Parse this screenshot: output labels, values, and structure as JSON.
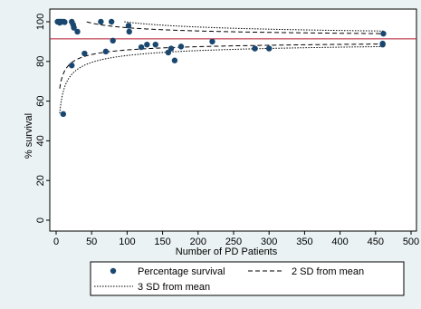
{
  "chart_data": {
    "type": "scatter",
    "xlabel": "Number of PD Patients",
    "ylabel": "% survival",
    "xlim": [
      0,
      500
    ],
    "ylim": [
      0,
      100
    ],
    "xticks": [
      0,
      50,
      100,
      150,
      200,
      250,
      300,
      350,
      400,
      450,
      500
    ],
    "yticks": [
      0,
      20,
      40,
      60,
      80,
      100
    ],
    "xtick_labels": [
      "0",
      "50",
      "100",
      "150",
      "200",
      "250",
      "300",
      "350",
      "400",
      "450",
      "500"
    ],
    "ytick_labels": [
      "0",
      "20",
      "40",
      "60",
      "80",
      "100"
    ],
    "grid": false,
    "legend_position": "bottom",
    "colors": {
      "points": "#1a476f",
      "mean_line": "#b2182b",
      "limits": "#000000",
      "frame_bg": "#eaf2f3",
      "plot_bg": "#ffffff"
    },
    "reference_line": {
      "y": 91.4
    },
    "series": [
      {
        "name": "Percentage survival",
        "kind": "points",
        "points": [
          [
            2,
            100
          ],
          [
            4,
            100
          ],
          [
            5,
            99.5
          ],
          [
            6,
            100
          ],
          [
            8,
            100
          ],
          [
            10,
            53.5
          ],
          [
            11,
            100
          ],
          [
            12,
            99.8
          ],
          [
            22,
            100
          ],
          [
            22,
            78
          ],
          [
            24,
            98.5
          ],
          [
            25,
            97
          ],
          [
            30,
            95
          ],
          [
            40,
            84
          ],
          [
            63,
            100
          ],
          [
            70,
            85
          ],
          [
            78,
            100
          ],
          [
            80,
            90.5
          ],
          [
            102,
            98
          ],
          [
            103,
            95
          ],
          [
            120,
            87.2
          ],
          [
            128,
            88.5
          ],
          [
            140,
            88.5
          ],
          [
            158,
            84.5
          ],
          [
            162,
            86.5
          ],
          [
            167,
            80.5
          ],
          [
            176,
            87.5
          ],
          [
            220,
            90
          ],
          [
            280,
            86.5
          ],
          [
            300,
            86.5
          ],
          [
            460,
            89
          ],
          [
            460,
            88.5
          ],
          [
            461,
            94
          ]
        ]
      },
      {
        "name": "2 SD from mean",
        "kind": "funnel",
        "sd": 2
      },
      {
        "name": "3 SD from mean",
        "kind": "funnel",
        "sd": 3
      }
    ],
    "legend": {
      "items": [
        "Percentage survival",
        "2 SD from mean",
        "3 SD from mean"
      ]
    }
  }
}
